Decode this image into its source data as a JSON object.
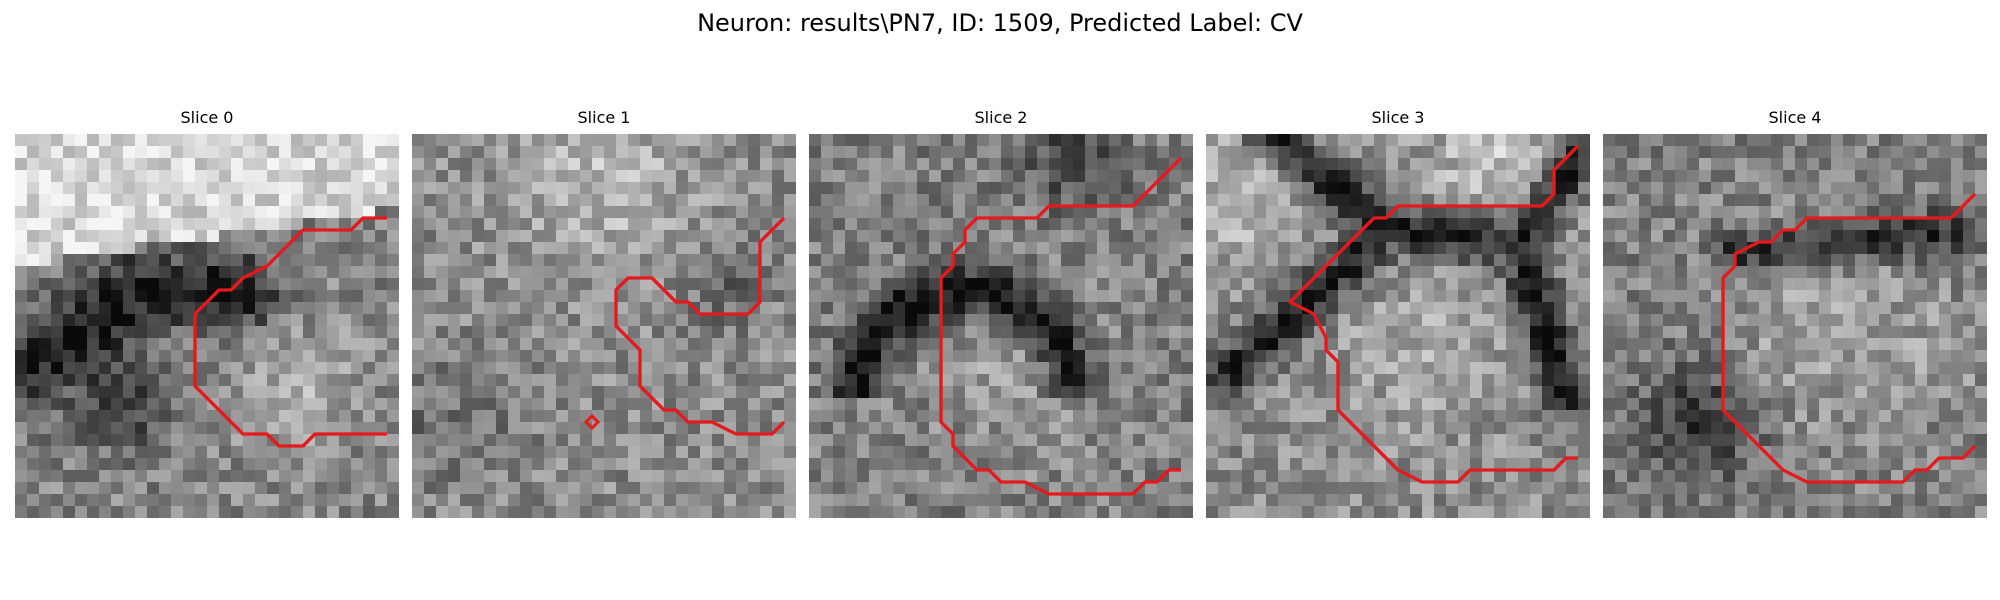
{
  "figure": {
    "title": "Neuron: results\\PN7, ID: 1509, Predicted Label: CV"
  },
  "contour_color": "#e41a1c",
  "panels": [
    {
      "title": "Slice 0",
      "seed": 11,
      "background": "bright-top-dark-band",
      "contour": [
        [
          31,
          7
        ],
        [
          29,
          7
        ],
        [
          28,
          8
        ],
        [
          26,
          8
        ],
        [
          24,
          8
        ],
        [
          23,
          9
        ],
        [
          22,
          10
        ],
        [
          21,
          11
        ],
        [
          19,
          12
        ],
        [
          18,
          13
        ],
        [
          17,
          13
        ],
        [
          16,
          14
        ],
        [
          15,
          15
        ],
        [
          15,
          16
        ],
        [
          15,
          17
        ],
        [
          15,
          18
        ],
        [
          15,
          19
        ],
        [
          15,
          20
        ],
        [
          15,
          21
        ],
        [
          16,
          22
        ],
        [
          17,
          23
        ],
        [
          18,
          24
        ],
        [
          19,
          25
        ],
        [
          21,
          25
        ],
        [
          22,
          26
        ],
        [
          24,
          26
        ],
        [
          25,
          25
        ],
        [
          27,
          25
        ],
        [
          29,
          25
        ],
        [
          31,
          25
        ]
      ],
      "markers": []
    },
    {
      "title": "Slice 1",
      "seed": 23,
      "background": "uniform-noisy",
      "contour": [
        [
          31,
          7
        ],
        [
          30,
          8
        ],
        [
          29,
          9
        ],
        [
          29,
          10
        ],
        [
          29,
          11
        ],
        [
          29,
          12
        ],
        [
          29,
          13
        ],
        [
          29,
          14
        ],
        [
          28,
          15
        ],
        [
          27,
          15
        ],
        [
          25,
          15
        ],
        [
          24,
          15
        ],
        [
          23,
          14
        ],
        [
          22,
          14
        ],
        [
          21,
          13
        ],
        [
          20,
          12
        ],
        [
          19,
          12
        ],
        [
          18,
          12
        ],
        [
          17,
          13
        ],
        [
          17,
          14
        ],
        [
          17,
          15
        ],
        [
          17,
          16
        ],
        [
          18,
          17
        ],
        [
          19,
          18
        ],
        [
          19,
          19
        ],
        [
          19,
          20
        ],
        [
          19,
          21
        ],
        [
          20,
          22
        ],
        [
          21,
          23
        ],
        [
          22,
          23
        ],
        [
          23,
          24
        ],
        [
          25,
          24
        ],
        [
          27,
          25
        ],
        [
          29,
          25
        ],
        [
          30,
          25
        ],
        [
          31,
          24
        ]
      ],
      "markers": [
        [
          15,
          24
        ]
      ]
    },
    {
      "title": "Slice 2",
      "seed": 37,
      "background": "dark-arc",
      "contour": [
        [
          31,
          2
        ],
        [
          30,
          3
        ],
        [
          29,
          4
        ],
        [
          28,
          5
        ],
        [
          27,
          6
        ],
        [
          25,
          6
        ],
        [
          23,
          6
        ],
        [
          21,
          6
        ],
        [
          20,
          6
        ],
        [
          19,
          7
        ],
        [
          18,
          7
        ],
        [
          14,
          7
        ],
        [
          13,
          8
        ],
        [
          13,
          9
        ],
        [
          12,
          10
        ],
        [
          12,
          11
        ],
        [
          11,
          12
        ],
        [
          11,
          13
        ],
        [
          11,
          14
        ],
        [
          11,
          16
        ],
        [
          11,
          18
        ],
        [
          11,
          20
        ],
        [
          11,
          22
        ],
        [
          11,
          24
        ],
        [
          12,
          25
        ],
        [
          12,
          26
        ],
        [
          13,
          27
        ],
        [
          14,
          28
        ],
        [
          15,
          28
        ],
        [
          16,
          29
        ],
        [
          18,
          29
        ],
        [
          20,
          30
        ],
        [
          24,
          30
        ],
        [
          27,
          30
        ],
        [
          28,
          29
        ],
        [
          29,
          29
        ],
        [
          30,
          28
        ],
        [
          31,
          28
        ]
      ],
      "markers": []
    },
    {
      "title": "Slice 3",
      "seed": 41,
      "background": "dark-x-cross",
      "contour": [
        [
          31,
          1
        ],
        [
          30,
          2
        ],
        [
          29,
          3
        ],
        [
          29,
          4
        ],
        [
          29,
          5
        ],
        [
          28,
          6
        ],
        [
          26,
          6
        ],
        [
          23,
          6
        ],
        [
          20,
          6
        ],
        [
          17,
          6
        ],
        [
          17,
          6
        ],
        [
          16,
          6
        ],
        [
          15,
          7
        ],
        [
          14,
          7
        ],
        [
          13,
          8
        ],
        [
          12,
          9
        ],
        [
          11,
          10
        ],
        [
          10,
          11
        ],
        [
          9,
          12
        ],
        [
          8,
          13
        ],
        [
          7,
          14
        ],
        [
          9,
          15
        ],
        [
          10,
          17
        ],
        [
          10,
          18
        ],
        [
          11,
          19
        ],
        [
          11,
          21
        ],
        [
          11,
          23
        ],
        [
          12,
          24
        ],
        [
          13,
          25
        ],
        [
          14,
          26
        ],
        [
          15,
          27
        ],
        [
          16,
          28
        ],
        [
          18,
          29
        ],
        [
          21,
          29
        ],
        [
          22,
          28
        ],
        [
          24,
          28
        ],
        [
          27,
          28
        ],
        [
          29,
          28
        ],
        [
          30,
          27
        ],
        [
          31,
          27
        ]
      ],
      "markers": []
    },
    {
      "title": "Slice 4",
      "seed": 53,
      "background": "dark-ring-right",
      "contour": [
        [
          31,
          5
        ],
        [
          30,
          6
        ],
        [
          29,
          7
        ],
        [
          27,
          7
        ],
        [
          25,
          7
        ],
        [
          23,
          7
        ],
        [
          21,
          7
        ],
        [
          18,
          7
        ],
        [
          17,
          7
        ],
        [
          16,
          8
        ],
        [
          15,
          8
        ],
        [
          14,
          9
        ],
        [
          13,
          9
        ],
        [
          11,
          10
        ],
        [
          11,
          11
        ],
        [
          10,
          12
        ],
        [
          10,
          14
        ],
        [
          10,
          16
        ],
        [
          10,
          18
        ],
        [
          10,
          20
        ],
        [
          10,
          22
        ],
        [
          10,
          23
        ],
        [
          11,
          24
        ],
        [
          12,
          25
        ],
        [
          13,
          26
        ],
        [
          14,
          27
        ],
        [
          15,
          28
        ],
        [
          17,
          29
        ],
        [
          19,
          29
        ],
        [
          22,
          29
        ],
        [
          25,
          29
        ],
        [
          26,
          28
        ],
        [
          27,
          28
        ],
        [
          28,
          27
        ],
        [
          29,
          27
        ],
        [
          30,
          27
        ],
        [
          31,
          26
        ]
      ],
      "markers": []
    }
  ]
}
